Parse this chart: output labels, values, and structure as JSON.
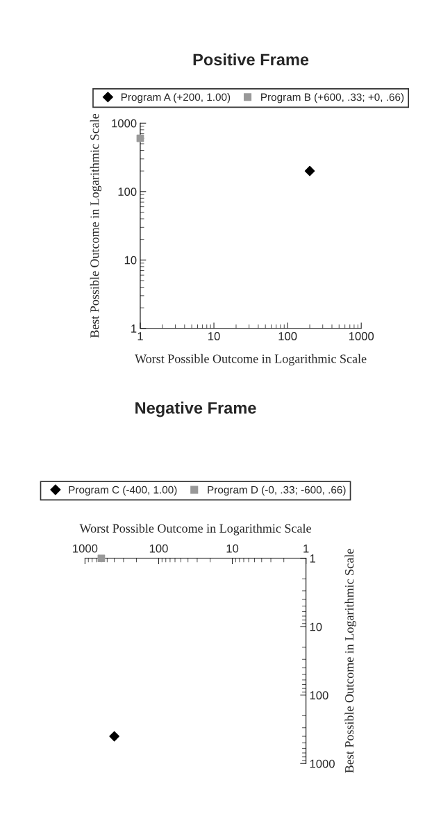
{
  "chart_data": [
    {
      "type": "scatter",
      "title": "Positive Frame",
      "xlabel": "Worst Possible Outcome in Logarithmic Scale",
      "ylabel": "Best Possible Outcome in Logarithmic Scale",
      "log": "xy",
      "xlim": [
        1,
        1000
      ],
      "ylim": [
        1,
        1000
      ],
      "xticks": [
        1,
        10,
        100,
        1000
      ],
      "yticks": [
        1,
        10,
        100,
        1000
      ],
      "grid": false,
      "legend": "top",
      "series": [
        {
          "name": "Program A (+200, 1.00)",
          "color": "#000000",
          "marker": "diamond",
          "x": [
            200
          ],
          "values": [
            200
          ]
        },
        {
          "name": "Program B (+600, .33; +0, .66)",
          "color": "#999999",
          "marker": "square",
          "x": [
            1
          ],
          "values": [
            600
          ]
        }
      ]
    },
    {
      "type": "scatter",
      "title": "Negative Frame",
      "xlabel": "Worst Possible Outcome in Logarithmic Scale",
      "ylabel": "Best Possible Outcome in Logarithmic Scale",
      "log": "xy",
      "xlim": [
        1000,
        1
      ],
      "ylim": [
        1000,
        1
      ],
      "xticks": [
        1000,
        100,
        10,
        1
      ],
      "yticks": [
        1000,
        100,
        10,
        1
      ],
      "grid": false,
      "legend": "top",
      "series": [
        {
          "name": "Program C (-400, 1.00)",
          "color": "#000000",
          "marker": "diamond",
          "x": [
            400
          ],
          "values": [
            400
          ]
        },
        {
          "name": "Program D (-0, .33; -600, .66)",
          "color": "#999999",
          "marker": "square",
          "x": [
            600
          ],
          "values": [
            1
          ]
        }
      ]
    }
  ]
}
